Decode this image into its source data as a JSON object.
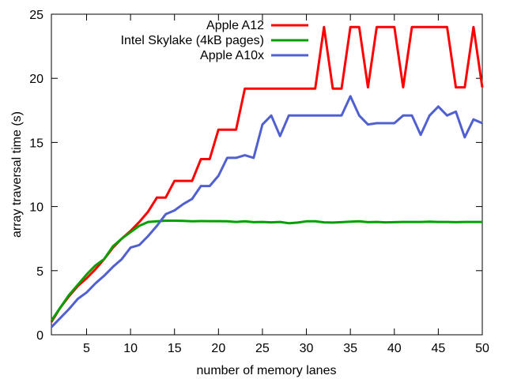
{
  "chart_data": {
    "type": "line",
    "xlabel": "number of memory lanes",
    "ylabel": "array traversal time (s)",
    "xlim": [
      1,
      50
    ],
    "ylim": [
      0,
      25
    ],
    "xticks": [
      5,
      10,
      15,
      20,
      25,
      30,
      35,
      40,
      45,
      50
    ],
    "yticks": [
      0,
      5,
      10,
      15,
      20,
      25
    ],
    "grid": false,
    "legend_position": "top-right",
    "series": [
      {
        "name": "Apple A12",
        "color": "#ff0000",
        "x": [
          1,
          2,
          3,
          4,
          5,
          6,
          7,
          8,
          9,
          10,
          11,
          12,
          13,
          14,
          15,
          16,
          17,
          18,
          19,
          20,
          21,
          22,
          23,
          24,
          25,
          26,
          27,
          28,
          29,
          30,
          31,
          32,
          33,
          34,
          35,
          36,
          37,
          38,
          39,
          40,
          41,
          42,
          43,
          44,
          45,
          46,
          47,
          48,
          49,
          50
        ],
        "y": [
          1.0,
          2.1,
          3.0,
          3.8,
          4.4,
          5.1,
          5.9,
          6.8,
          7.5,
          8.1,
          8.8,
          9.6,
          10.7,
          10.7,
          12.0,
          12.0,
          12.0,
          13.7,
          13.7,
          16.0,
          16.0,
          16.0,
          19.2,
          19.2,
          19.2,
          19.2,
          19.2,
          19.2,
          19.2,
          19.2,
          19.2,
          24.0,
          19.2,
          19.2,
          24.0,
          24.0,
          19.3,
          24.0,
          24.0,
          24.0,
          19.3,
          24.0,
          24.0,
          24.0,
          24.0,
          24.0,
          19.3,
          19.3,
          24.0,
          19.3
        ]
      },
      {
        "name": "Intel Skylake (4kB pages)",
        "color": "#00a000",
        "x": [
          1,
          2,
          3,
          4,
          5,
          6,
          7,
          8,
          9,
          10,
          11,
          12,
          13,
          14,
          15,
          16,
          17,
          18,
          19,
          20,
          21,
          22,
          23,
          24,
          25,
          26,
          27,
          28,
          29,
          30,
          31,
          32,
          33,
          34,
          35,
          36,
          37,
          38,
          39,
          40,
          41,
          42,
          43,
          44,
          45,
          46,
          47,
          48,
          49,
          50
        ],
        "y": [
          1.1,
          2.1,
          3.1,
          3.9,
          4.7,
          5.4,
          5.9,
          6.9,
          7.5,
          8.0,
          8.5,
          8.8,
          8.85,
          8.9,
          8.9,
          8.88,
          8.85,
          8.87,
          8.86,
          8.86,
          8.85,
          8.8,
          8.85,
          8.78,
          8.8,
          8.77,
          8.8,
          8.7,
          8.75,
          8.85,
          8.85,
          8.77,
          8.75,
          8.78,
          8.82,
          8.85,
          8.78,
          8.8,
          8.77,
          8.78,
          8.8,
          8.8,
          8.8,
          8.82,
          8.8,
          8.8,
          8.78,
          8.8,
          8.8,
          8.8
        ]
      },
      {
        "name": "Apple A10x",
        "color": "#5060d0",
        "x": [
          1,
          2,
          3,
          4,
          5,
          6,
          7,
          8,
          9,
          10,
          11,
          12,
          13,
          14,
          15,
          16,
          17,
          18,
          19,
          20,
          21,
          22,
          23,
          24,
          25,
          26,
          27,
          28,
          29,
          30,
          31,
          32,
          33,
          34,
          35,
          36,
          37,
          38,
          39,
          40,
          41,
          42,
          43,
          44,
          45,
          46,
          47,
          48,
          49,
          50
        ],
        "y": [
          0.6,
          1.3,
          2.0,
          2.8,
          3.3,
          4.0,
          4.6,
          5.3,
          5.9,
          6.8,
          7.0,
          7.7,
          8.5,
          9.4,
          9.7,
          10.2,
          10.6,
          11.6,
          11.6,
          12.4,
          13.8,
          13.8,
          14.0,
          13.8,
          16.4,
          17.1,
          15.5,
          17.1,
          17.1,
          17.1,
          17.1,
          17.1,
          17.1,
          17.1,
          18.6,
          17.1,
          16.4,
          16.5,
          16.5,
          16.5,
          17.1,
          17.1,
          15.6,
          17.1,
          17.8,
          17.1,
          17.4,
          15.4,
          16.8,
          16.5
        ]
      }
    ]
  }
}
